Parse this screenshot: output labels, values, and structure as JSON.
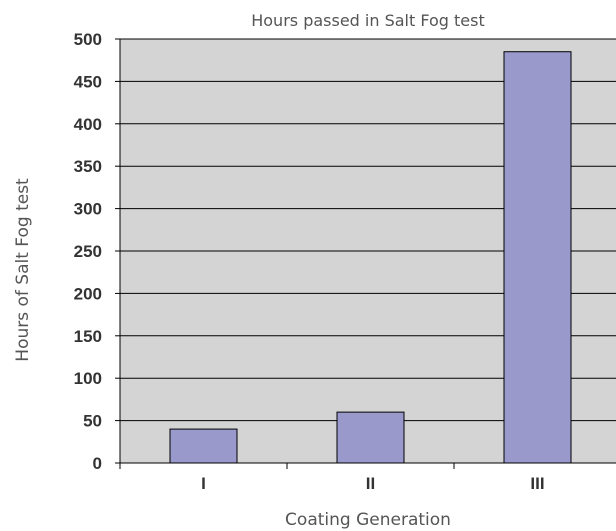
{
  "chart_data": {
    "type": "bar",
    "title": "Hours passed in Salt Fog test",
    "xlabel": "Coating Generation",
    "ylabel": "Hours of Salt Fog test",
    "categories": [
      "I",
      "II",
      "III"
    ],
    "values": [
      40,
      60,
      485
    ],
    "ylim": [
      0,
      500
    ],
    "yticks": [
      0,
      50,
      100,
      150,
      200,
      250,
      300,
      350,
      400,
      450,
      500
    ],
    "grid": true,
    "legend": "none",
    "colors": {
      "bar": "#9999cc",
      "bar_edge": "#000000",
      "plot_background": "#d4d4d4",
      "gridline": "#000000"
    }
  }
}
